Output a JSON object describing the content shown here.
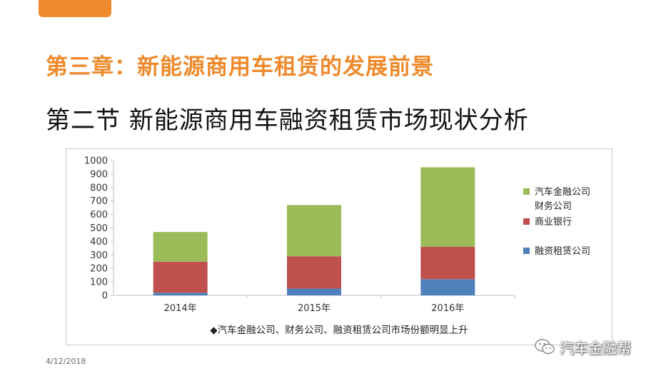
{
  "colors": {
    "accent": "#ee8a2c",
    "finance_company": "#9bbb59",
    "bank": "#c0504d",
    "leasing": "#4f81bd",
    "grid": "#d9d9d9"
  },
  "slide": {
    "chapter_title": "第三章：新能源商用车租赁的发展前景",
    "section_title": "第二节  新能源商用车融资租赁市场现状分析",
    "date": "4/12/2018",
    "watermark": "汽车金融帮",
    "watermark_icon": "wechat-icon"
  },
  "chart_data": {
    "type": "bar",
    "stacked": true,
    "categories": [
      "2014年",
      "2015年",
      "2016年"
    ],
    "series": [
      {
        "name": "融资租赁公司",
        "color": "#4f81bd",
        "values": [
          20,
          50,
          120
        ]
      },
      {
        "name": "商业银行",
        "color": "#c0504d",
        "values": [
          230,
          240,
          240
        ]
      },
      {
        "name": "汽车金融公司\n财务公司",
        "color": "#9bbb59",
        "values": [
          220,
          380,
          590
        ]
      }
    ],
    "ylim": [
      0,
      1000
    ],
    "yticks": [
      "0",
      "100",
      "200",
      "300",
      "400",
      "500",
      "600",
      "700",
      "800",
      "900",
      "1000"
    ],
    "grid": false,
    "legend_position": "right",
    "caption": "◆汽车金融公司、财务公司、融资租赁公司市场份额明显上升"
  }
}
